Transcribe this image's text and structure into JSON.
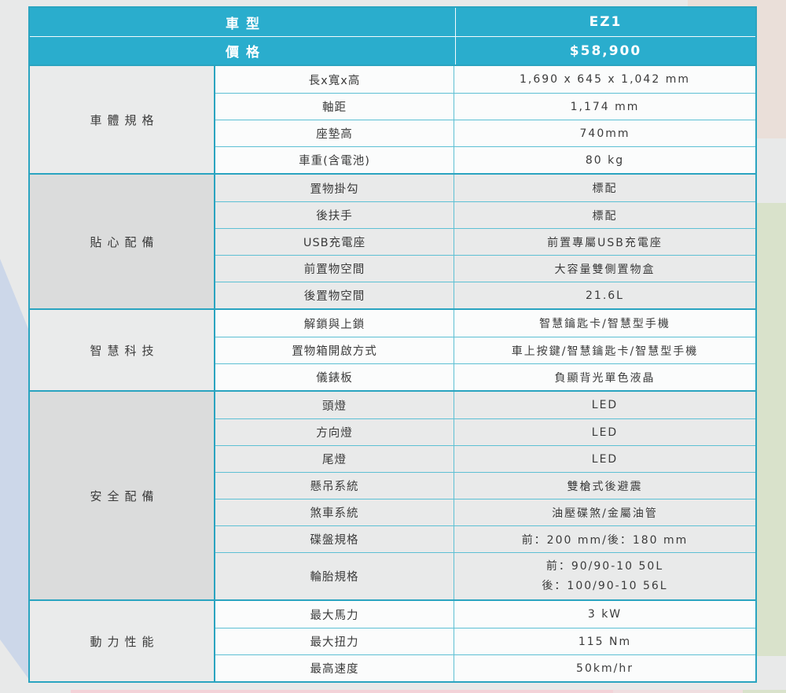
{
  "theme": {
    "teal": "#2aadcd",
    "border_teal": "#2aa4c0",
    "thin_line": "#5dc0d4",
    "row_light": "#fbfcfc",
    "row_dark": "#e9eaea",
    "label_light": "#eaebeb",
    "label_dark": "#dbdcdc",
    "text": "#3b3b3b",
    "page_bg": "#e8e9e9",
    "deco_blue": "#ccd7e9",
    "deco_green": "#d9e2cb",
    "deco_beige": "#eadfd9",
    "deco_pink": "#f3d2d8"
  },
  "header": {
    "model_label": "車型",
    "model_value": "EZ1",
    "price_label": "價格",
    "price_value": "$58,900"
  },
  "sections": [
    {
      "title": "車體規格",
      "rows": [
        {
          "label": "長x寬x高",
          "value": "1,690 x 645 x 1,042 mm"
        },
        {
          "label": "軸距",
          "value": "1,174 mm"
        },
        {
          "label": "座墊高",
          "value": "740mm"
        },
        {
          "label": "車重(含電池)",
          "value": "80 kg"
        }
      ]
    },
    {
      "title": "貼心配備",
      "rows": [
        {
          "label": "置物掛勾",
          "value": "標配"
        },
        {
          "label": "後扶手",
          "value": "標配"
        },
        {
          "label": "USB充電座",
          "value": "前置專屬USB充電座"
        },
        {
          "label": "前置物空間",
          "value": "大容量雙側置物盒"
        },
        {
          "label": "後置物空間",
          "value": "21.6L"
        }
      ]
    },
    {
      "title": "智慧科技",
      "rows": [
        {
          "label": "解鎖與上鎖",
          "value": "智慧鑰匙卡/智慧型手機"
        },
        {
          "label": "置物箱開啟方式",
          "value": "車上按鍵/智慧鑰匙卡/智慧型手機"
        },
        {
          "label": "儀錶板",
          "value": "負顯背光單色液晶"
        }
      ]
    },
    {
      "title": "安全配備",
      "rows": [
        {
          "label": "頭燈",
          "value": "LED"
        },
        {
          "label": "方向燈",
          "value": "LED"
        },
        {
          "label": "尾燈",
          "value": "LED"
        },
        {
          "label": "懸吊系統",
          "value": "雙槍式後避震"
        },
        {
          "label": "煞車系統",
          "value": "油壓碟煞/金屬油管"
        },
        {
          "label": "碟盤規格",
          "value": "前：200 mm/後：180 mm"
        },
        {
          "label": "輪胎規格",
          "value_line1": "前：90/90-10 50L",
          "value_line2": "後：100/90-10 56L"
        }
      ]
    },
    {
      "title": "動力性能",
      "rows": [
        {
          "label": "最大馬力",
          "value": "3 kW"
        },
        {
          "label": "最大扭力",
          "value": "115 Nm"
        },
        {
          "label": "最高速度",
          "value": "50km/hr"
        }
      ]
    }
  ]
}
